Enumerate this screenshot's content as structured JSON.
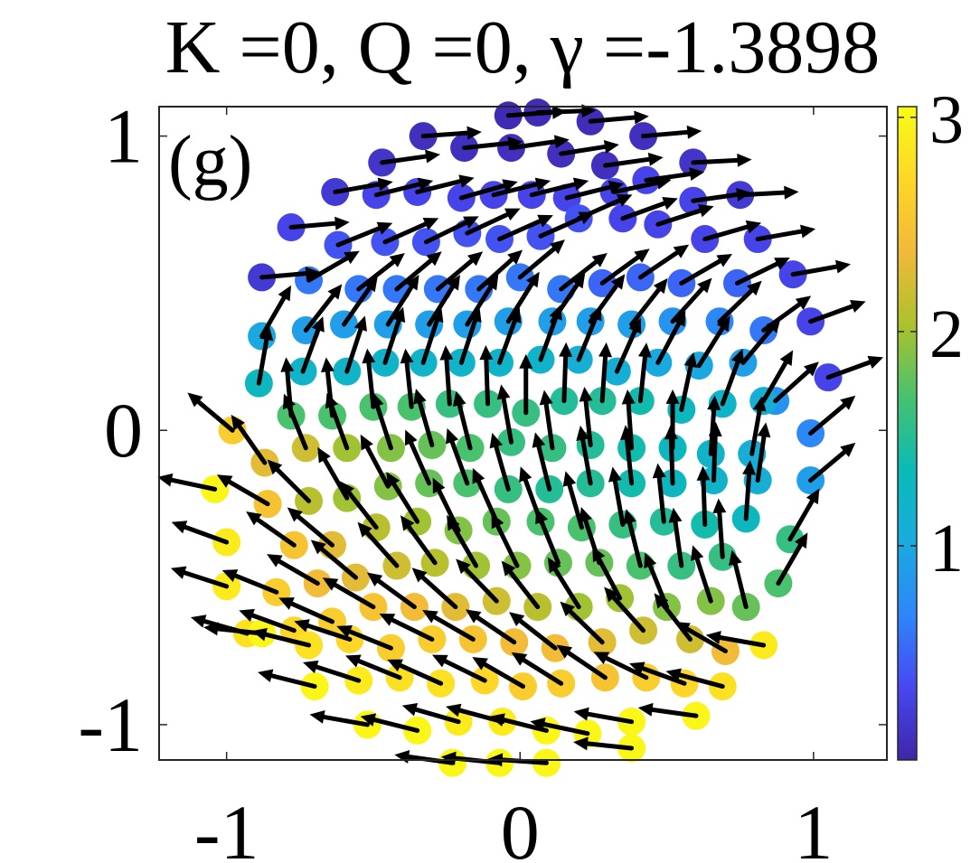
{
  "chart_data": {
    "type": "scatter",
    "title": "K =0, Q =0, γ =-1.3898",
    "panel_label": "(g)",
    "xlabel": "",
    "ylabel": "",
    "xlim": [
      -1.23,
      1.25
    ],
    "ylim": [
      -1.12,
      1.1
    ],
    "x_ticks": [
      -1,
      0,
      1
    ],
    "x_tick_labels": [
      "-1",
      "0",
      "1"
    ],
    "y_ticks": [
      -1,
      0,
      1
    ],
    "y_tick_labels": [
      "-1",
      "0",
      "1"
    ],
    "colorbar": {
      "ticks": [
        1,
        2,
        3
      ],
      "tick_labels": [
        "1",
        "2",
        "3"
      ],
      "range": [
        0,
        3.05
      ],
      "colormap": "parula",
      "stops": [
        "#3e26a8",
        "#4748f1",
        "#2e86f9",
        "#19aadf",
        "#0bbab6",
        "#48c16e",
        "#abc22c",
        "#f1b93a",
        "#fdd727",
        "#f9fb15"
      ]
    },
    "arrow_length": 0.2,
    "points_note": "spin lattice: each point has position (x, y), in-plane arrow direction (angle, degrees) and color value (colorbar units)",
    "points": [
      [
        -0.04,
        1.07,
        4,
        0.05
      ],
      [
        0.06,
        1.08,
        2,
        0.06
      ],
      [
        0.24,
        1.05,
        5,
        0.08
      ],
      [
        -0.33,
        1.0,
        4,
        0.1
      ],
      [
        -0.19,
        0.96,
        6,
        0.1
      ],
      [
        -0.03,
        0.96,
        8,
        0.1
      ],
      [
        0.14,
        0.94,
        9,
        0.1
      ],
      [
        0.42,
        1.0,
        5,
        0.1
      ],
      [
        -0.47,
        0.91,
        8,
        0.15
      ],
      [
        0.29,
        0.9,
        8,
        0.1
      ],
      [
        0.59,
        0.91,
        3,
        0.15
      ],
      [
        -0.63,
        0.81,
        10,
        0.2
      ],
      [
        -0.49,
        0.8,
        14,
        0.3
      ],
      [
        -0.35,
        0.81,
        14,
        0.3
      ],
      [
        -0.2,
        0.79,
        16,
        0.3
      ],
      [
        -0.09,
        0.8,
        14,
        0.3
      ],
      [
        0.04,
        0.8,
        14,
        0.3
      ],
      [
        0.16,
        0.79,
        14,
        0.3
      ],
      [
        0.32,
        0.81,
        12,
        0.3
      ],
      [
        0.43,
        0.85,
        8,
        0.3
      ],
      [
        0.59,
        0.78,
        8,
        0.3
      ],
      [
        0.75,
        0.8,
        3,
        0.2
      ],
      [
        -0.78,
        0.69,
        5,
        0.3
      ],
      [
        -0.62,
        0.63,
        22,
        0.4
      ],
      [
        -0.46,
        0.64,
        24,
        0.4
      ],
      [
        -0.32,
        0.64,
        26,
        0.4
      ],
      [
        -0.18,
        0.67,
        25,
        0.4
      ],
      [
        -0.07,
        0.65,
        24,
        0.4
      ],
      [
        0.07,
        0.66,
        24,
        0.4
      ],
      [
        0.2,
        0.72,
        24,
        0.4
      ],
      [
        0.35,
        0.72,
        20,
        0.3
      ],
      [
        0.47,
        0.7,
        18,
        0.3
      ],
      [
        0.63,
        0.65,
        16,
        0.3
      ],
      [
        0.81,
        0.65,
        10,
        0.3
      ],
      [
        -0.88,
        0.52,
        5,
        0.2
      ],
      [
        -0.72,
        0.51,
        30,
        0.6
      ],
      [
        -0.55,
        0.48,
        38,
        0.6
      ],
      [
        -0.42,
        0.48,
        40,
        0.6
      ],
      [
        -0.28,
        0.48,
        40,
        0.6
      ],
      [
        -0.14,
        0.48,
        42,
        0.6
      ],
      [
        0.0,
        0.52,
        40,
        0.6
      ],
      [
        0.14,
        0.48,
        38,
        0.6
      ],
      [
        0.28,
        0.5,
        36,
        0.5
      ],
      [
        0.41,
        0.52,
        34,
        0.5
      ],
      [
        0.55,
        0.5,
        30,
        0.5
      ],
      [
        0.74,
        0.5,
        26,
        0.5
      ],
      [
        0.93,
        0.53,
        10,
        0.3
      ],
      [
        -0.88,
        0.32,
        60,
        1.0
      ],
      [
        -0.73,
        0.34,
        52,
        0.9
      ],
      [
        -0.6,
        0.36,
        55,
        0.9
      ],
      [
        -0.45,
        0.36,
        58,
        0.9
      ],
      [
        -0.31,
        0.36,
        58,
        0.9
      ],
      [
        -0.18,
        0.36,
        58,
        0.9
      ],
      [
        -0.04,
        0.37,
        58,
        0.9
      ],
      [
        0.11,
        0.37,
        56,
        0.9
      ],
      [
        0.24,
        0.37,
        54,
        0.9
      ],
      [
        0.38,
        0.36,
        52,
        0.9
      ],
      [
        0.52,
        0.37,
        48,
        0.8
      ],
      [
        0.68,
        0.37,
        44,
        0.7
      ],
      [
        0.83,
        0.34,
        36,
        0.6
      ],
      [
        0.99,
        0.37,
        20,
        0.3
      ],
      [
        -0.89,
        0.16,
        80,
        1.3
      ],
      [
        -0.74,
        0.2,
        70,
        1.2
      ],
      [
        -0.59,
        0.2,
        72,
        1.2
      ],
      [
        -0.46,
        0.23,
        72,
        1.2
      ],
      [
        -0.33,
        0.23,
        72,
        1.2
      ],
      [
        -0.2,
        0.23,
        72,
        1.2
      ],
      [
        -0.07,
        0.23,
        70,
        1.2
      ],
      [
        0.07,
        0.24,
        70,
        1.2
      ],
      [
        0.2,
        0.24,
        68,
        1.1
      ],
      [
        0.33,
        0.2,
        66,
        1.1
      ],
      [
        0.47,
        0.23,
        62,
        1.0
      ],
      [
        0.61,
        0.22,
        58,
        1.0
      ],
      [
        0.76,
        0.23,
        50,
        0.9
      ],
      [
        0.87,
        0.1,
        42,
        0.8
      ],
      [
        1.05,
        0.18,
        20,
        0.3
      ],
      [
        -0.98,
        0.0,
        140,
        2.6
      ],
      [
        -0.78,
        0.05,
        95,
        1.7
      ],
      [
        -0.64,
        0.05,
        96,
        1.7
      ],
      [
        -0.5,
        0.08,
        96,
        1.7
      ],
      [
        -0.37,
        0.08,
        96,
        1.7
      ],
      [
        -0.24,
        0.09,
        94,
        1.6
      ],
      [
        -0.11,
        0.09,
        92,
        1.6
      ],
      [
        0.02,
        0.06,
        90,
        1.6
      ],
      [
        0.15,
        0.1,
        88,
        1.5
      ],
      [
        0.28,
        0.1,
        86,
        1.5
      ],
      [
        0.41,
        0.1,
        84,
        1.4
      ],
      [
        0.55,
        0.07,
        78,
        1.3
      ],
      [
        0.69,
        0.09,
        70,
        1.2
      ],
      [
        0.83,
        0.1,
        60,
        1.1
      ],
      [
        0.99,
        -0.01,
        40,
        0.7
      ],
      [
        -1.04,
        -0.2,
        168,
        3.0
      ],
      [
        -0.87,
        -0.11,
        125,
        2.3
      ],
      [
        -0.73,
        -0.06,
        112,
        2.2
      ],
      [
        -0.59,
        -0.06,
        110,
        2.0
      ],
      [
        -0.44,
        -0.06,
        108,
        1.9
      ],
      [
        -0.3,
        -0.05,
        106,
        1.8
      ],
      [
        -0.17,
        -0.06,
        104,
        1.7
      ],
      [
        -0.03,
        -0.04,
        100,
        1.6
      ],
      [
        0.11,
        -0.06,
        98,
        1.6
      ],
      [
        0.24,
        -0.05,
        96,
        1.5
      ],
      [
        0.38,
        -0.06,
        94,
        1.4
      ],
      [
        0.52,
        -0.06,
        90,
        1.3
      ],
      [
        0.65,
        -0.08,
        86,
        1.2
      ],
      [
        0.79,
        -0.08,
        80,
        1.1
      ],
      [
        0.99,
        -0.17,
        40,
        0.9
      ],
      [
        -0.86,
        -0.25,
        150,
        2.5
      ],
      [
        -0.72,
        -0.24,
        135,
        2.1
      ],
      [
        -0.59,
        -0.23,
        120,
        2.0
      ],
      [
        -0.45,
        -0.19,
        118,
        1.9
      ],
      [
        -0.31,
        -0.18,
        114,
        1.8
      ],
      [
        -0.18,
        -0.18,
        110,
        1.7
      ],
      [
        -0.04,
        -0.2,
        106,
        1.6
      ],
      [
        0.1,
        -0.2,
        104,
        1.5
      ],
      [
        0.24,
        -0.18,
        100,
        1.5
      ],
      [
        0.38,
        -0.18,
        96,
        1.4
      ],
      [
        0.52,
        -0.18,
        92,
        1.3
      ],
      [
        0.66,
        -0.17,
        88,
        1.2
      ],
      [
        0.81,
        -0.17,
        82,
        1.1
      ],
      [
        -1.0,
        -0.38,
        160,
        2.9
      ],
      [
        -0.77,
        -0.39,
        145,
        2.5
      ],
      [
        -0.64,
        -0.39,
        140,
        2.3
      ],
      [
        -0.49,
        -0.33,
        128,
        2.1
      ],
      [
        -0.35,
        -0.31,
        122,
        2.0
      ],
      [
        -0.21,
        -0.34,
        116,
        1.9
      ],
      [
        -0.08,
        -0.31,
        114,
        1.8
      ],
      [
        0.07,
        -0.31,
        110,
        1.7
      ],
      [
        0.21,
        -0.33,
        106,
        1.7
      ],
      [
        0.35,
        -0.32,
        100,
        1.6
      ],
      [
        0.49,
        -0.31,
        96,
        1.5
      ],
      [
        0.63,
        -0.32,
        92,
        1.4
      ],
      [
        0.77,
        -0.3,
        86,
        1.3
      ],
      [
        0.92,
        -0.37,
        60,
        1.6
      ],
      [
        -1.0,
        -0.53,
        162,
        2.9
      ],
      [
        -0.83,
        -0.55,
        158,
        2.6
      ],
      [
        -0.69,
        -0.52,
        150,
        2.4
      ],
      [
        -0.56,
        -0.5,
        140,
        2.3
      ],
      [
        -0.42,
        -0.46,
        132,
        2.2
      ],
      [
        -0.29,
        -0.45,
        126,
        2.1
      ],
      [
        -0.15,
        -0.46,
        120,
        2.0
      ],
      [
        -0.01,
        -0.46,
        116,
        1.9
      ],
      [
        0.13,
        -0.45,
        112,
        1.8
      ],
      [
        0.27,
        -0.45,
        108,
        1.8
      ],
      [
        0.41,
        -0.46,
        104,
        1.7
      ],
      [
        0.55,
        -0.46,
        98,
        1.6
      ],
      [
        0.69,
        -0.43,
        94,
        1.6
      ],
      [
        0.88,
        -0.52,
        60,
        1.7
      ],
      [
        -0.93,
        -0.69,
        164,
        2.8
      ],
      [
        -0.77,
        -0.68,
        160,
        2.7
      ],
      [
        -0.64,
        -0.65,
        156,
        2.6
      ],
      [
        -0.5,
        -0.6,
        150,
        2.5
      ],
      [
        -0.36,
        -0.6,
        144,
        2.4
      ],
      [
        -0.22,
        -0.6,
        138,
        2.3
      ],
      [
        -0.08,
        -0.58,
        134,
        2.2
      ],
      [
        0.06,
        -0.6,
        128,
        2.1
      ],
      [
        0.2,
        -0.6,
        122,
        2.0
      ],
      [
        0.34,
        -0.57,
        118,
        2.0
      ],
      [
        0.5,
        -0.6,
        112,
        1.9
      ],
      [
        0.65,
        -0.58,
        108,
        1.9
      ],
      [
        0.77,
        -0.6,
        104,
        1.8
      ],
      [
        -0.88,
        -0.69,
        174,
        3.0
      ],
      [
        -0.72,
        -0.73,
        166,
        2.8
      ],
      [
        -0.58,
        -0.71,
        162,
        2.7
      ],
      [
        -0.44,
        -0.74,
        158,
        2.6
      ],
      [
        -0.3,
        -0.71,
        154,
        2.6
      ],
      [
        -0.16,
        -0.71,
        150,
        2.5
      ],
      [
        -0.02,
        -0.72,
        146,
        2.4
      ],
      [
        0.12,
        -0.74,
        142,
        2.4
      ],
      [
        0.28,
        -0.72,
        136,
        2.3
      ],
      [
        0.42,
        -0.68,
        132,
        2.2
      ],
      [
        0.58,
        -0.71,
        128,
        2.2
      ],
      [
        0.7,
        -0.75,
        150,
        2.4
      ],
      [
        0.83,
        -0.73,
        170,
        2.9
      ],
      [
        -0.7,
        -0.87,
        166,
        3.0
      ],
      [
        -0.55,
        -0.85,
        162,
        2.9
      ],
      [
        -0.41,
        -0.84,
        158,
        2.8
      ],
      [
        -0.27,
        -0.86,
        156,
        2.8
      ],
      [
        -0.12,
        -0.85,
        154,
        2.7
      ],
      [
        0.01,
        -0.87,
        150,
        2.6
      ],
      [
        0.14,
        -0.86,
        148,
        2.6
      ],
      [
        0.29,
        -0.84,
        146,
        2.5
      ],
      [
        0.43,
        -0.84,
        154,
        2.6
      ],
      [
        0.56,
        -0.86,
        160,
        2.7
      ],
      [
        0.69,
        -0.87,
        165,
        2.8
      ],
      [
        -0.52,
        -1.0,
        170,
        3.0
      ],
      [
        -0.35,
        -1.02,
        166,
        3.0
      ],
      [
        -0.21,
        -0.99,
        164,
        2.9
      ],
      [
        -0.06,
        -0.99,
        165,
        2.9
      ],
      [
        0.09,
        -1.02,
        166,
        3.0
      ],
      [
        0.23,
        -1.03,
        168,
        3.0
      ],
      [
        0.38,
        -0.99,
        170,
        3.0
      ],
      [
        0.6,
        -0.97,
        172,
        3.0
      ],
      [
        -0.23,
        -1.13,
        172,
        3.0
      ],
      [
        -0.07,
        -1.13,
        174,
        3.0
      ],
      [
        0.09,
        -1.13,
        176,
        3.0
      ],
      [
        0.38,
        -1.08,
        174,
        3.0
      ]
    ]
  }
}
